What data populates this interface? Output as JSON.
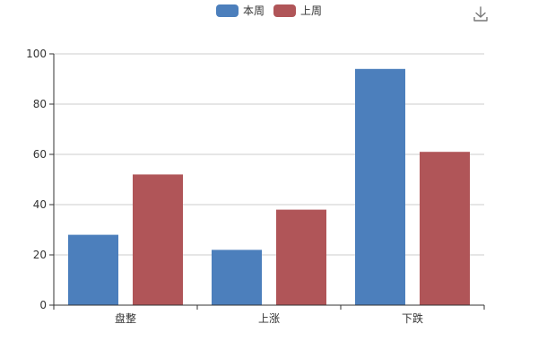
{
  "toolbox": {
    "download_icon": "download-icon"
  },
  "chart_data": {
    "type": "bar",
    "title": "",
    "categories": [
      "盘整",
      "上涨",
      "下跌"
    ],
    "series": [
      {
        "name": "本周",
        "values": [
          28,
          22,
          94
        ],
        "color": "#4c7fbc"
      },
      {
        "name": "上周",
        "values": [
          52,
          38,
          61
        ],
        "color": "#b05558"
      }
    ],
    "ylim": [
      0,
      100
    ],
    "yticks": [
      0,
      20,
      40,
      60,
      80,
      100
    ],
    "grid": true,
    "legend_position": "top-center"
  }
}
